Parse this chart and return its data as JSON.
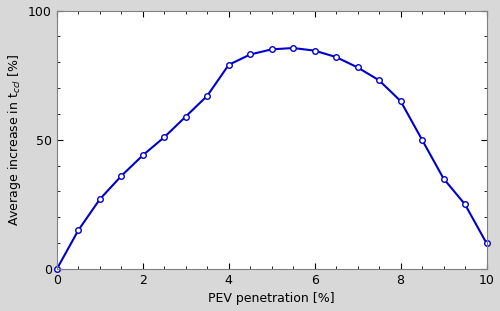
{
  "x": [
    0.0,
    0.5,
    1.0,
    1.5,
    2.0,
    2.5,
    3.0,
    3.5,
    4.0,
    4.5,
    5.0,
    5.5,
    6.0,
    6.5,
    7.0,
    7.5,
    8.0,
    8.5,
    9.0,
    9.5,
    10.0
  ],
  "y": [
    0.0,
    15.0,
    27.0,
    36.0,
    44.0,
    51.0,
    59.0,
    67.0,
    79.0,
    83.0,
    85.0,
    85.5,
    84.5,
    82.0,
    78.0,
    73.0,
    65.0,
    50.0,
    35.0,
    25.0,
    10.0
  ],
  "line_color": "#0000CC",
  "marker": "o",
  "marker_facecolor": "white",
  "marker_edgecolor": "#0000CC",
  "marker_size": 4,
  "linewidth": 1.5,
  "xlabel": "PEV penetration [%]",
  "ylabel": "Average increase in t$_{ccl}$ [%]",
  "xlim": [
    0,
    10
  ],
  "ylim": [
    0,
    100
  ],
  "xticks": [
    0,
    2,
    4,
    6,
    8,
    10
  ],
  "yticks": [
    0,
    50,
    100
  ],
  "figsize": [
    5.0,
    3.11
  ],
  "dpi": 100,
  "fig_background": "#d8d8d8",
  "ax_background": "#ffffff",
  "spine_color": "#808080",
  "label_fontsize": 9,
  "tick_fontsize": 9
}
